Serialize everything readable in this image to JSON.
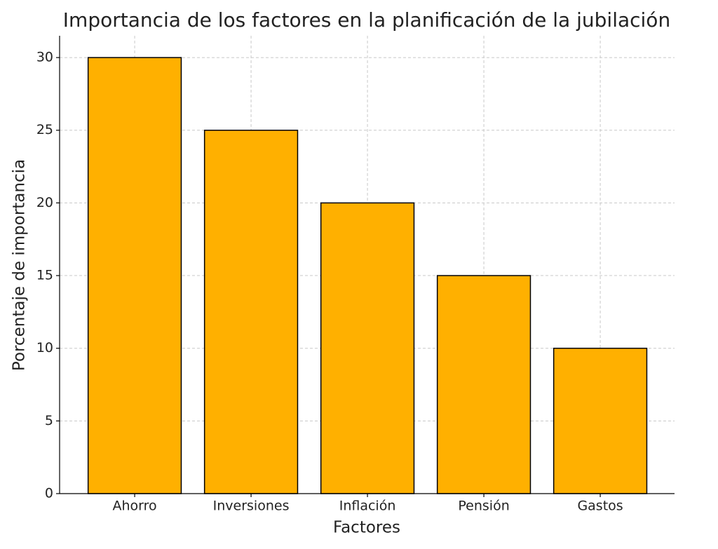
{
  "chart_data": {
    "type": "bar",
    "title": "Importancia de los factores en la planificación de la jubilación",
    "x_label": "Factores",
    "y_label": "Porcentaje de importancia",
    "categories": [
      "Ahorro",
      "Inversiones",
      "Inflación",
      "Pensión",
      "Gastos"
    ],
    "values": [
      30,
      25,
      20,
      15,
      10
    ],
    "color": "#ffb000",
    "edgecolor": "#000000",
    "ylim": [
      0,
      31.5
    ],
    "yticks": [
      0,
      5,
      10,
      15,
      20,
      25,
      30
    ],
    "grid": true
  }
}
